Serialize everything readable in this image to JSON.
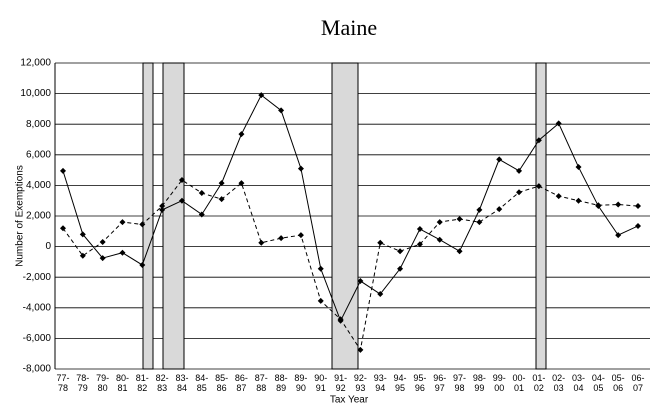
{
  "chart_data": {
    "type": "line",
    "title": "Maine",
    "y_label": "Number of Exemptions",
    "x_label": "Tax Year",
    "categories": [
      "77-78",
      "78-79",
      "79-80",
      "80-81",
      "81-82",
      "82-83",
      "83-84",
      "84-85",
      "85-86",
      "86-87",
      "87-88",
      "88-89",
      "89-90",
      "90-91",
      "91-92",
      "92-93",
      "93-94",
      "94-95",
      "95-96",
      "96-97",
      "97-98",
      "98-99",
      "99-00",
      "00-01",
      "01-02",
      "02-03",
      "03-04",
      "04-05",
      "05-06",
      "06-07"
    ],
    "series": [
      {
        "color": "#000000",
        "dashed": false,
        "values": [
          4950,
          800,
          -750,
          -400,
          -1200,
          2400,
          3000,
          2100,
          4150,
          7350,
          9900,
          8900,
          5100,
          -1450,
          -4850,
          -2250,
          -3100,
          -1450,
          1150,
          450,
          -300,
          2400,
          5700,
          4950,
          6950,
          8050,
          5200,
          2650,
          750,
          1350
        ]
      },
      {
        "color": "#000000",
        "dashed": true,
        "values": [
          1200,
          -600,
          300,
          1600,
          1450,
          2650,
          4350,
          3500,
          3100,
          4150,
          250,
          550,
          750,
          -3550,
          -4750,
          -6750,
          250,
          -300,
          150,
          1600,
          1800,
          1600,
          2450,
          3550,
          3950,
          3300,
          3000,
          2700,
          2750,
          2650
        ]
      }
    ],
    "ylim": [
      -8000,
      12000
    ],
    "yticks": [
      {
        "value": 12000,
        "label": "12,000"
      },
      {
        "value": 10000,
        "label": "10,000"
      },
      {
        "value": 8000,
        "label": "8,000"
      },
      {
        "value": 6000,
        "label": "6,000"
      },
      {
        "value": 4000,
        "label": "4,000"
      },
      {
        "value": 2000,
        "label": "2,000"
      },
      0,
      {
        "value": -2000,
        "label": "-2,000"
      },
      {
        "value": -4000,
        "label": "-4,000"
      },
      {
        "value": -6000,
        "label": "-6,000"
      },
      {
        "value": -8000,
        "label": "-8,000"
      }
    ],
    "grid": true
  }
}
